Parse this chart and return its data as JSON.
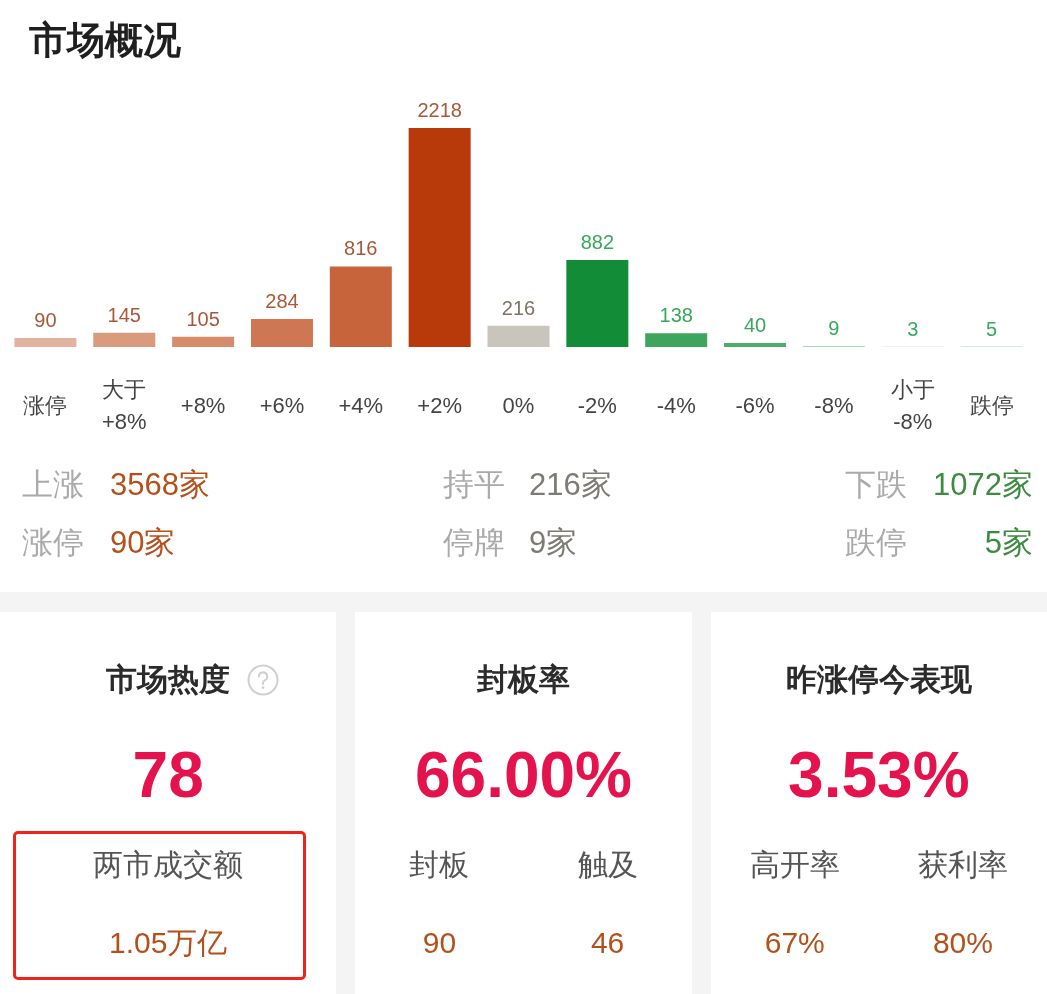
{
  "chart_data": [
    {
      "type": "bar",
      "title": "市场概况",
      "categories": [
        "涨停",
        "大于+8%",
        "+8%",
        "+6%",
        "+4%",
        "+2%",
        "0%",
        "-2%",
        "-4%",
        "-6%",
        "-8%",
        "小于-8%",
        "跌停"
      ],
      "values": [
        90,
        145,
        105,
        284,
        816,
        2218,
        216,
        882,
        138,
        40,
        9,
        3,
        5
      ],
      "colors": [
        "#e2b3a0",
        "#d99a7e",
        "#d88c6e",
        "#cf7752",
        "#c8643c",
        "#b83a0a",
        "#c9c5bd",
        "#128c36",
        "#3ea55c",
        "#4cae6a",
        "#a9d9b9",
        "#a9d9b9",
        "#a9d9b9"
      ],
      "data_labels": true
    },
    {
      "type": "other",
      "annotations": [
        "上涨",
        "3568家",
        "持平",
        "216家",
        "下跌",
        "1072家",
        "涨停",
        "90家",
        "停牌",
        "9家",
        "跌停",
        "5家"
      ]
    },
    {
      "type": "other",
      "title": "市场热度",
      "annotations": [
        "78",
        "两市成交额",
        "1.05万亿"
      ]
    },
    {
      "type": "other",
      "title": "封板率",
      "annotations": [
        "66.00%",
        "封板",
        "90",
        "触及",
        "46"
      ]
    },
    {
      "type": "other",
      "title": "昨涨停今表现",
      "annotations": [
        "3.53%",
        "高开率",
        "67%",
        "获利率",
        "80%"
      ]
    }
  ]
}
